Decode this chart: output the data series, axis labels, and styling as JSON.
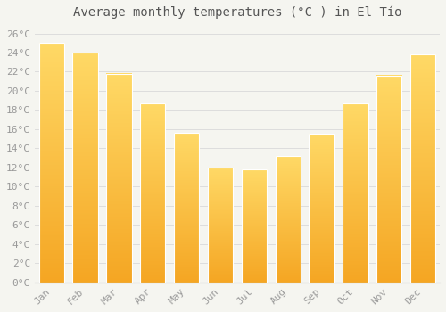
{
  "title": "Average monthly temperatures (°C ) in El Tío",
  "months": [
    "Jan",
    "Feb",
    "Mar",
    "Apr",
    "May",
    "Jun",
    "Jul",
    "Aug",
    "Sep",
    "Oct",
    "Nov",
    "Dec"
  ],
  "values": [
    25.0,
    24.0,
    21.8,
    18.7,
    15.6,
    12.0,
    11.8,
    13.2,
    15.5,
    18.7,
    21.6,
    23.8
  ],
  "bar_color_bottom": "#F5A623",
  "bar_color_top": "#FFD966",
  "background_color": "#F5F5F0",
  "plot_bg_color": "#F5F5F0",
  "grid_color": "#DDDDDD",
  "ylim": [
    0,
    27
  ],
  "ytick_step": 2,
  "title_fontsize": 10,
  "tick_fontsize": 8,
  "bar_width": 0.75
}
